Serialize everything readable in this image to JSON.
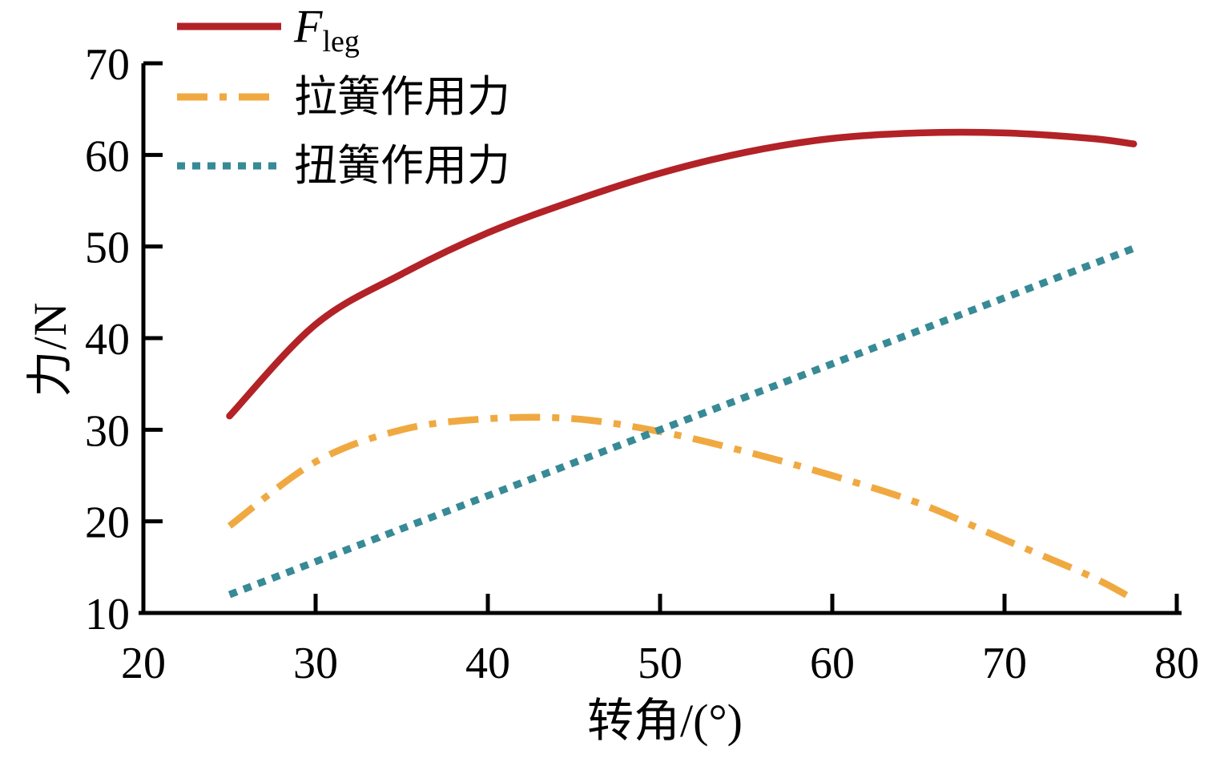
{
  "figure": {
    "background": "#ffffff",
    "axis_color": "#000000"
  },
  "axes": {
    "x_label": "转角/(°)",
    "y_label": "力/N",
    "x_ticks": [
      20,
      30,
      40,
      50,
      60,
      70,
      80
    ],
    "y_ticks": [
      10,
      20,
      30,
      40,
      50,
      60,
      70
    ]
  },
  "legend": {
    "items": [
      {
        "text_main": "F",
        "text_sub": "leg",
        "style": "solid"
      },
      {
        "text": "拉簧作用力",
        "style": "dash-dot"
      },
      {
        "text": "扭簧作用力",
        "style": "dotted"
      }
    ]
  },
  "chart_data": {
    "type": "line",
    "title": "",
    "xlabel": "转角/(°)",
    "ylabel": "力/N",
    "xlim": [
      20,
      80
    ],
    "ylim": [
      10,
      70
    ],
    "grid": false,
    "legend_position": "top-left",
    "x": [
      25,
      30,
      35,
      40,
      45,
      50,
      55,
      60,
      65,
      70,
      75,
      77.5
    ],
    "series": [
      {
        "name": "F_leg",
        "color": "#b22227",
        "line_style": "solid",
        "values": [
          31.5,
          41.5,
          47.0,
          51.5,
          55.0,
          58.0,
          60.3,
          61.8,
          62.4,
          62.4,
          61.8,
          61.2
        ]
      },
      {
        "name": "拉簧作用力",
        "color": "#f0a941",
        "line_style": "dash-dot",
        "values": [
          19.5,
          26.5,
          30.0,
          31.2,
          31.2,
          29.8,
          27.6,
          25.0,
          22.0,
          18.0,
          14.0,
          11.5
        ]
      },
      {
        "name": "扭簧作用力",
        "color": "#378a96",
        "line_style": "dotted",
        "values": [
          12.0,
          15.6,
          19.2,
          22.8,
          26.4,
          30.0,
          33.6,
          37.2,
          40.8,
          44.4,
          48.0,
          49.8
        ]
      }
    ]
  }
}
